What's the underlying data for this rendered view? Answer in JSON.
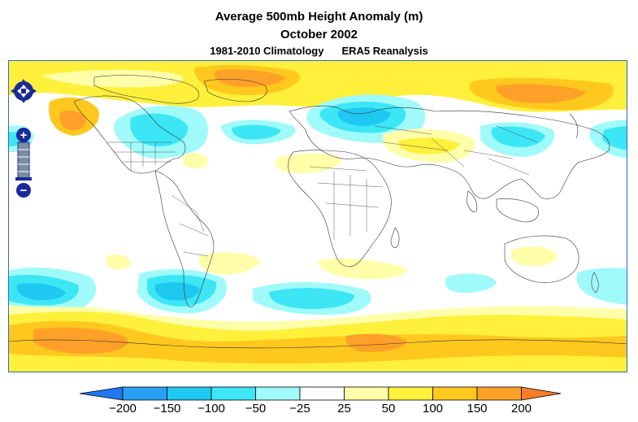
{
  "title": {
    "line1": "Average 500mb Height Anomaly (m)",
    "line2": "October 2002",
    "climatology": "1981-2010 Climatology",
    "source": "ERA5 Reanalysis"
  },
  "map_controls": {
    "pan_icons": [
      "arrow-up-icon",
      "arrow-left-icon",
      "arrow-right-icon",
      "arrow-down-icon"
    ],
    "zoom_in_label": "+",
    "zoom_out_label": "−",
    "accent_color": "#1a2a99"
  },
  "legend": {
    "tick_labels": [
      "−200",
      "−150",
      "−100",
      "−50",
      "−25",
      "25",
      "50",
      "100",
      "150",
      "200"
    ],
    "colors": [
      "#1e78f0",
      "#2aa0f5",
      "#1ec8f0",
      "#3ce6f5",
      "#a0fafa",
      "#ffffff",
      "#ffffaa",
      "#fff03c",
      "#ffc81e",
      "#ffa028",
      "#f57d28"
    ]
  },
  "colors": {
    "map_border": "#2a6ebf",
    "neg_strong": "#1ec8f0",
    "neg_mid": "#3ce6f5",
    "neg_weak": "#a0fafa",
    "pos_weak": "#ffffaa",
    "pos_mid": "#fff03c",
    "pos_strong": "#ffc81e",
    "pos_max": "#ffa028"
  }
}
